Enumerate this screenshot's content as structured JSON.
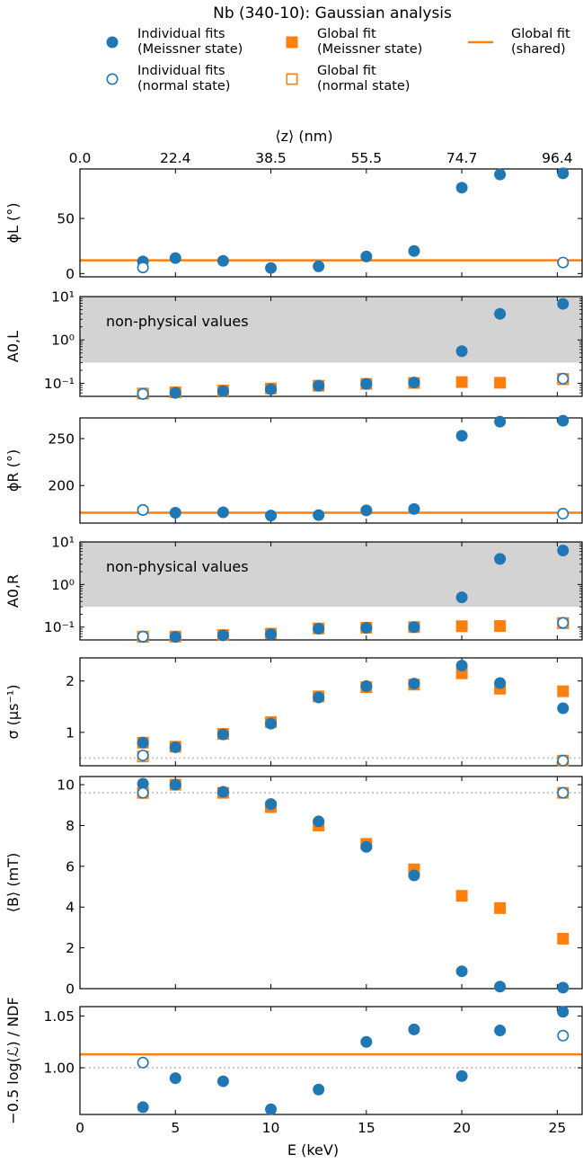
{
  "title": "Nb (340-10): Gaussian analysis",
  "colors": {
    "blue": "#1f77b4",
    "orange": "#ff7f0e",
    "shade": "#d3d3d3",
    "ref": "#c8c8c8"
  },
  "legend": [
    {
      "key": "ind_m",
      "marker": "filled-circle",
      "color": "#1f77b4",
      "line1": "Individual fits",
      "line2": "(Meissner state)"
    },
    {
      "key": "glob_m",
      "marker": "filled-square",
      "color": "#ff7f0e",
      "line1": "Global fit",
      "line2": "(Meissner state)"
    },
    {
      "key": "shared",
      "marker": "line",
      "color": "#ff7f0e",
      "line1": "Global fit",
      "line2": "(shared)"
    },
    {
      "key": "ind_n",
      "marker": "open-circle",
      "color": "#1f77b4",
      "line1": "Individual fits",
      "line2": "(normal state)"
    },
    {
      "key": "glob_n",
      "marker": "open-square",
      "color": "#ff7f0e",
      "line1": "Global fit",
      "line2": "(normal state)"
    }
  ],
  "chart_data": {
    "type": "scatter",
    "xlabel": "E (keV)",
    "xlim": [
      0,
      26.3
    ],
    "xticks": [
      0,
      5,
      10,
      15,
      20,
      25
    ],
    "top_axis": {
      "label": "⟨z⟩ (nm)",
      "ticks": [
        {
          "E": 0,
          "label": "0.0"
        },
        {
          "E": 5,
          "label": "22.4"
        },
        {
          "E": 10,
          "label": "38.5"
        },
        {
          "E": 15,
          "label": "55.5"
        },
        {
          "E": 20,
          "label": "74.7"
        },
        {
          "E": 25,
          "label": "96.4"
        }
      ]
    },
    "shaded_label": "non-physical values",
    "panels": [
      {
        "id": "phiL",
        "ylabel": "ϕL (°)",
        "scale": "linear",
        "ylim": [
          -3,
          95
        ],
        "yticks": [
          0,
          50
        ],
        "shared_line": 12,
        "series": [
          {
            "key": "ind_m",
            "x": [
              3.3,
              5,
              7.5,
              10,
              12.5,
              15,
              17.5,
              20,
              22,
              25.3
            ],
            "y": [
              11,
              14,
              11.5,
              5,
              6.5,
              15.5,
              20.5,
              78,
              90,
              91
            ]
          },
          {
            "key": "ind_n",
            "x": [
              3.3,
              25.3
            ],
            "y": [
              5.5,
              10
            ]
          }
        ]
      },
      {
        "id": "A0L",
        "ylabel": "A0,L",
        "scale": "log",
        "ylim": [
          0.05,
          10
        ],
        "yticks": [
          0.1,
          1,
          10
        ],
        "ytick_labels": [
          "10⁻¹",
          "10⁰",
          "10¹"
        ],
        "shade": [
          0.3,
          10
        ],
        "series": [
          {
            "key": "glob_m",
            "x": [
              3.3,
              5,
              7.5,
              10,
              12.5,
              15,
              17.5,
              20,
              22,
              25.3
            ],
            "y": [
              0.058,
              0.062,
              0.068,
              0.076,
              0.088,
              0.097,
              0.102,
              0.107,
              0.103,
              0.125
            ]
          },
          {
            "key": "glob_n",
            "x": [
              3.3,
              25.3
            ],
            "y": [
              0.058,
              0.125
            ]
          },
          {
            "key": "ind_m",
            "x": [
              3.3,
              5,
              7.5,
              10,
              12.5,
              15,
              17.5,
              20,
              22,
              25.3
            ],
            "y": [
              0.057,
              0.06,
              0.066,
              0.073,
              0.088,
              0.097,
              0.104,
              0.55,
              4.0,
              6.8
            ]
          },
          {
            "key": "ind_n",
            "x": [
              3.3,
              25.3
            ],
            "y": [
              0.057,
              0.128
            ]
          }
        ]
      },
      {
        "id": "phiR",
        "ylabel": "ϕR (°)",
        "scale": "linear",
        "ylim": [
          160,
          272
        ],
        "yticks": [
          200,
          250
        ],
        "shared_line": 171,
        "series": [
          {
            "key": "ind_m",
            "x": [
              3.3,
              5,
              7.5,
              10,
              12.5,
              15,
              17.5,
              20,
              22,
              25.3
            ],
            "y": [
              174,
              171,
              171.5,
              168,
              168.5,
              173.5,
              175,
              253,
              268,
              269
            ]
          },
          {
            "key": "ind_n",
            "x": [
              3.3,
              25.3
            ],
            "y": [
              174,
              170
            ]
          }
        ]
      },
      {
        "id": "A0R",
        "ylabel": "A0,R",
        "scale": "log",
        "ylim": [
          0.05,
          10
        ],
        "yticks": [
          0.1,
          1,
          10
        ],
        "ytick_labels": [
          "10⁻¹",
          "10⁰",
          "10¹"
        ],
        "shade": [
          0.3,
          10
        ],
        "series": [
          {
            "key": "glob_m",
            "x": [
              3.3,
              5,
              7.5,
              10,
              12.5,
              15,
              17.5,
              20,
              22,
              25.3
            ],
            "y": [
              0.059,
              0.06,
              0.065,
              0.07,
              0.093,
              0.097,
              0.1,
              0.105,
              0.106,
              0.124
            ]
          },
          {
            "key": "glob_n",
            "x": [
              3.3,
              25.3
            ],
            "y": [
              0.06,
              0.124
            ]
          },
          {
            "key": "ind_m",
            "x": [
              3.3,
              5,
              7.5,
              10,
              12.5,
              15,
              17.5,
              20,
              22,
              25.3
            ],
            "y": [
              0.059,
              0.059,
              0.064,
              0.068,
              0.092,
              0.096,
              0.1,
              0.5,
              4.0,
              6.3
            ]
          },
          {
            "key": "ind_n",
            "x": [
              3.3,
              25.3
            ],
            "y": [
              0.06,
              0.126
            ]
          }
        ]
      },
      {
        "id": "sigma",
        "ylabel": "σ (μs⁻¹)",
        "scale": "linear",
        "ylim": [
          0.35,
          2.45
        ],
        "yticks": [
          1,
          2
        ],
        "ref_line": 0.5,
        "series": [
          {
            "key": "glob_m",
            "x": [
              3.3,
              5,
              7.5,
              10,
              12.5,
              15,
              17.5,
              20,
              22,
              25.3
            ],
            "y": [
              0.8,
              0.72,
              0.97,
              1.2,
              1.7,
              1.88,
              1.93,
              2.15,
              1.85,
              1.8
            ]
          },
          {
            "key": "glob_n",
            "x": [
              3.3,
              25.3
            ],
            "y": [
              0.53,
              0.45
            ]
          },
          {
            "key": "ind_m",
            "x": [
              3.3,
              5,
              7.5,
              10,
              12.5,
              15,
              17.5,
              20,
              22,
              25.3
            ],
            "y": [
              0.8,
              0.71,
              0.96,
              1.17,
              1.68,
              1.9,
              1.95,
              2.3,
              1.96,
              1.47
            ]
          },
          {
            "key": "ind_n",
            "x": [
              3.3,
              25.3
            ],
            "y": [
              0.55,
              0.45
            ]
          }
        ]
      },
      {
        "id": "B",
        "ylabel": "⟨B⟩ (mT)",
        "scale": "linear",
        "ylim": [
          0,
          10.4
        ],
        "yticks": [
          0,
          2,
          4,
          6,
          8,
          10
        ],
        "ref_line": 9.6,
        "series": [
          {
            "key": "glob_m",
            "x": [
              3.3,
              5,
              7.5,
              10,
              12.5,
              15,
              17.5,
              20,
              22,
              25.3
            ],
            "y": [
              9.6,
              10.0,
              9.6,
              8.9,
              8.0,
              7.1,
              5.85,
              4.55,
              3.95,
              2.45
            ]
          },
          {
            "key": "glob_n",
            "x": [
              3.3,
              25.3
            ],
            "y": [
              9.6,
              9.6
            ]
          },
          {
            "key": "ind_m",
            "x": [
              3.3,
              5,
              7.5,
              10,
              12.5,
              15,
              17.5,
              20,
              22,
              25.3
            ],
            "y": [
              10.05,
              10.0,
              9.65,
              9.05,
              8.2,
              6.95,
              5.55,
              0.85,
              0.1,
              0.05
            ]
          },
          {
            "key": "ind_n",
            "x": [
              3.3,
              25.3
            ],
            "y": [
              9.6,
              9.6
            ]
          }
        ]
      },
      {
        "id": "ndf",
        "ylabel": "−0.5 log(ℒ) / NDF",
        "scale": "linear",
        "ylim": [
          0.955,
          1.059
        ],
        "yticks": [
          1.0,
          1.05
        ],
        "ytick_labels": [
          "1.00",
          "1.05"
        ],
        "ref_line": 1.0,
        "shared_line": 1.013,
        "series": [
          {
            "key": "ind_m",
            "x": [
              3.3,
              5,
              7.5,
              10,
              12.5,
              15,
              17.5,
              20,
              22,
              25.3
            ],
            "y": [
              0.962,
              0.99,
              0.987,
              0.96,
              0.979,
              1.025,
              1.037,
              0.992,
              1.036,
              1.054
            ]
          },
          {
            "key": "ind_n",
            "x": [
              3.3,
              25.3
            ],
            "y": [
              1.005,
              1.031
            ]
          }
        ]
      }
    ]
  }
}
